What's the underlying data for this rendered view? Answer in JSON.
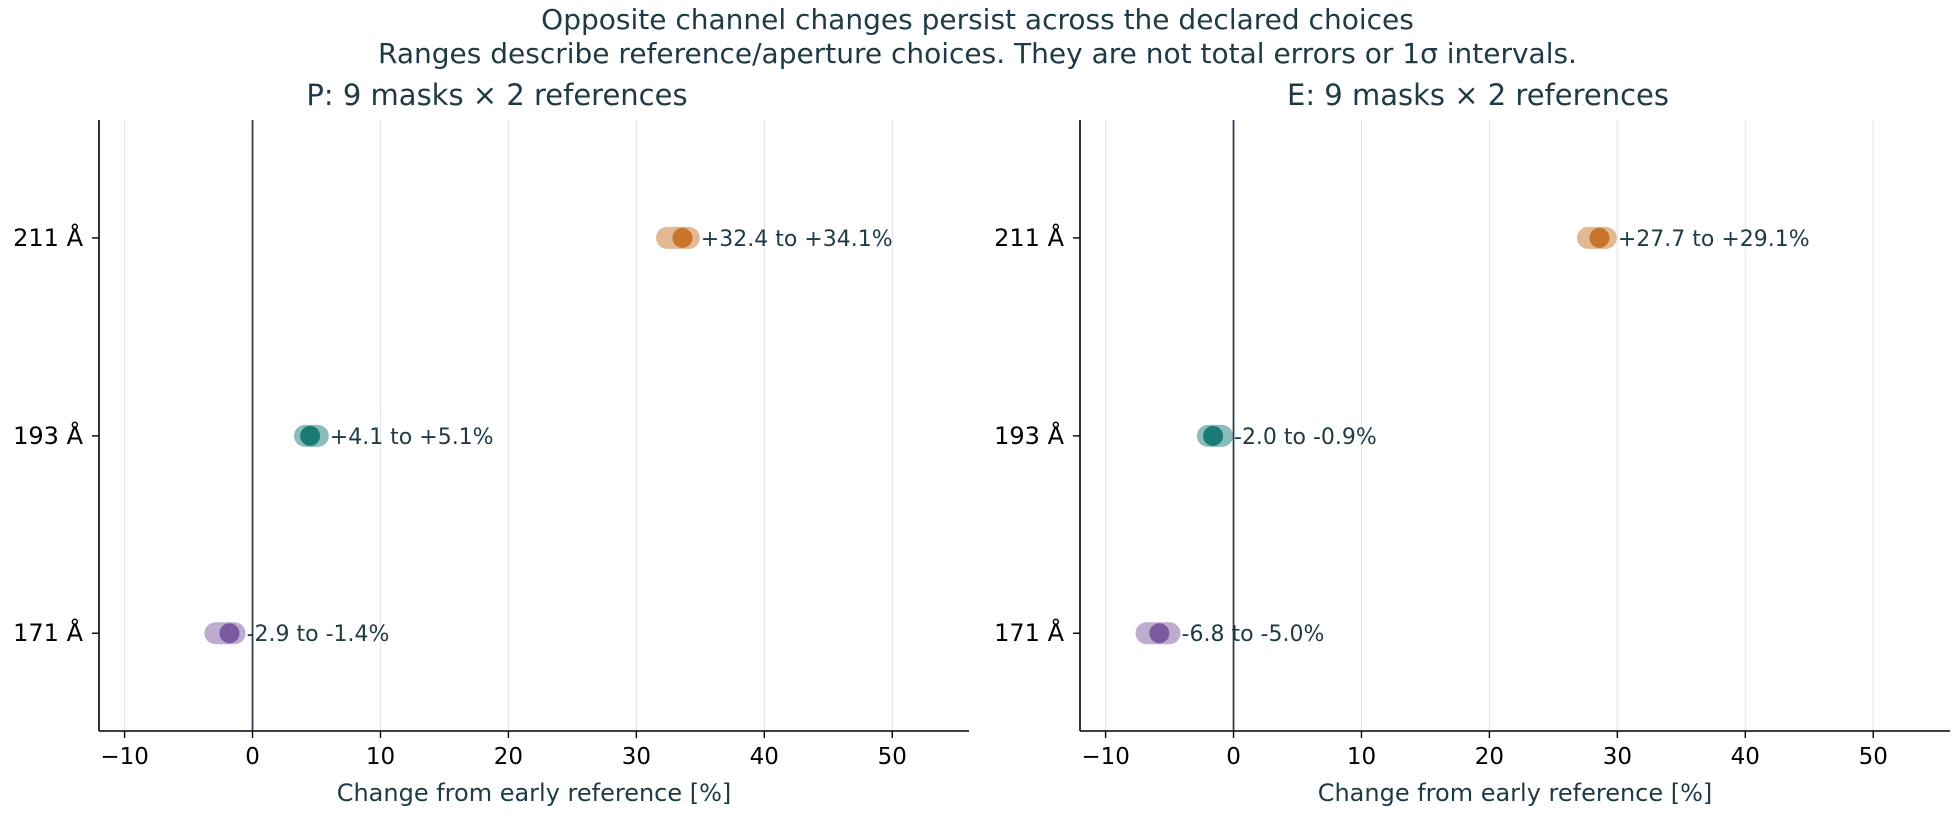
{
  "title": "Opposite channel changes persist across the declared choices",
  "subtitle": "Ranges describe reference/aperture choices. They are not total errors or 1σ intervals.",
  "colors": {
    "text": "#1f3a44",
    "axis": "#000000",
    "zero_line": "#2c3e50",
    "grid": "#e6e6e6",
    "171": "#7d5a9f",
    "193": "#1a7a76",
    "211": "#c8742a"
  },
  "chart_data": [
    {
      "type": "range",
      "title": "P: 9 masks × 2 references",
      "xlabel": "Change from early reference [%]",
      "xlim": [
        -12,
        56
      ],
      "xticks": [
        -10,
        0,
        10,
        20,
        30,
        40,
        50
      ],
      "xtick_labels": [
        "−10",
        "0",
        "10",
        "20",
        "30",
        "40",
        "50"
      ],
      "grid": "x",
      "categories": [
        "171 Å",
        "193 Å",
        "211 Å"
      ],
      "channels": [
        "171",
        "193",
        "211"
      ],
      "ranges": [
        [
          -2.9,
          -1.4
        ],
        [
          4.1,
          5.1
        ],
        [
          32.4,
          34.1
        ]
      ],
      "points": [
        -1.8,
        4.5,
        33.6
      ],
      "labels": [
        "-2.9 to -1.4%",
        "+4.1 to +5.1%",
        "+32.4 to +34.1%"
      ]
    },
    {
      "type": "range",
      "title": "E: 9 masks × 2 references",
      "xlabel": "Change from early reference [%]",
      "xlim": [
        -12,
        56
      ],
      "xticks": [
        -10,
        0,
        10,
        20,
        30,
        40,
        50
      ],
      "xtick_labels": [
        "−10",
        "0",
        "10",
        "20",
        "30",
        "40",
        "50"
      ],
      "grid": "x",
      "categories": [
        "171 Å",
        "193 Å",
        "211 Å"
      ],
      "channels": [
        "171",
        "193",
        "211"
      ],
      "ranges": [
        [
          -6.8,
          -5.0
        ],
        [
          -2.0,
          -0.9
        ],
        [
          27.7,
          29.1
        ]
      ],
      "points": [
        -5.8,
        -1.6,
        28.6
      ],
      "labels": [
        "-6.8 to -5.0%",
        "-2.0 to -0.9%",
        "+27.7 to +29.1%"
      ]
    }
  ]
}
